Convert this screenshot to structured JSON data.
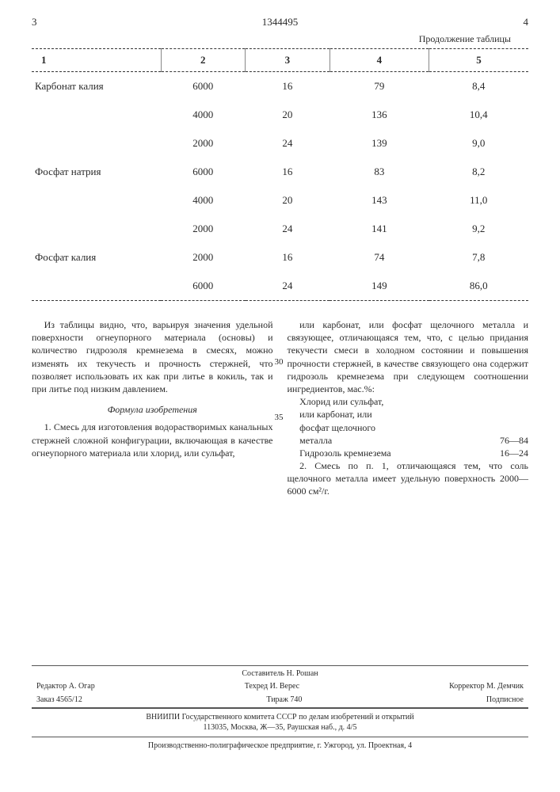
{
  "header": {
    "left_page": "3",
    "doc_number": "1344495",
    "right_page": "4"
  },
  "table": {
    "continuation_label": "Продолжение таблицы",
    "columns": [
      "1",
      "2",
      "3",
      "4",
      "5"
    ],
    "rows": [
      {
        "c1": "Карбонат калия",
        "c2": "6000",
        "c3": "16",
        "c4": "79",
        "c5": "8,4"
      },
      {
        "c1": "",
        "c2": "4000",
        "c3": "20",
        "c4": "136",
        "c5": "10,4"
      },
      {
        "c1": "",
        "c2": "2000",
        "c3": "24",
        "c4": "139",
        "c5": "9,0"
      },
      {
        "c1": "Фосфат натрия",
        "c2": "6000",
        "c3": "16",
        "c4": "83",
        "c5": "8,2"
      },
      {
        "c1": "",
        "c2": "4000",
        "c3": "20",
        "c4": "143",
        "c5": "11,0"
      },
      {
        "c1": "",
        "c2": "2000",
        "c3": "24",
        "c4": "141",
        "c5": "9,2"
      },
      {
        "c1": "Фосфат калия",
        "c2": "2000",
        "c3": "16",
        "c4": "74",
        "c5": "7,8"
      },
      {
        "c1": "",
        "c2": "6000",
        "c3": "24",
        "c4": "149",
        "c5": "86,0"
      }
    ]
  },
  "left_col": {
    "p1": "Из таблицы видно, что, варьируя значения удельной поверхности огнеупорного материала (основы) и количество гидрозоля кремнезема в смесях, можно изменять их текучесть и прочность стержней, что позволяет использовать их как при литье в кокиль, так и при литье под низким давлением.",
    "formula_heading": "Формула изобретения",
    "p2": "1. Смесь для изготовления водорастворимых канальных стержней сложной конфигурации, включающая в качестве огнеупорного материала или хлорид, или сульфат,"
  },
  "right_col": {
    "p1": "или карбонат, или фосфат щелочного металла и связующее, отличающаяся тем, что, с целью придания текучести смеси в холодном состоянии и повышения прочности стержней, в качестве связующего она содержит гидрозоль кремнезема при следующем соотношении ингредиентов, мас.%:",
    "ing1_label": "Хлорид или сульфат,",
    "ing1b_label": "или карбонат, или",
    "ing1c_label": "фосфат щелочного",
    "ing1d_label": "металла",
    "ing1_val": "76—84",
    "ing2_label": "Гидрозоль кремнезема",
    "ing2_val": "16—24",
    "p2": "2. Смесь по п. 1, отличающаяся тем, что соль щелочного металла имеет удельную поверхность 2000—6000 см²/г."
  },
  "line_nos": {
    "a": "30",
    "b": "35"
  },
  "footer": {
    "compiler": "Составитель Н. Рошан",
    "editor": "Редактор А. Огар",
    "techred": "Техред И. Верес",
    "corrector": "Корректор М. Демчик",
    "order": "Заказ 4565/12",
    "tirage": "Тираж 740",
    "subscribed": "Подписное",
    "org1": "ВНИИПИ Государственного комитета СССР по делам изобретений и открытий",
    "org1_addr": "113035, Москва, Ж—35, Раушская наб., д. 4/5",
    "org2": "Производственно-полиграфическое предприятие, г. Ужгород, ул. Проектная, 4"
  }
}
